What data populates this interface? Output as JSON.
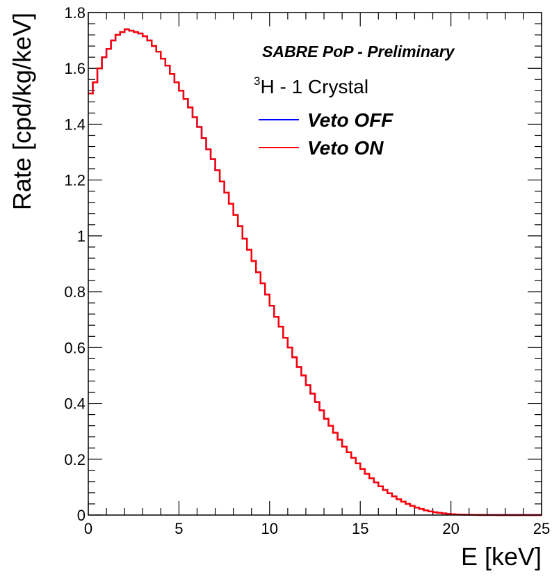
{
  "chart_data": {
    "type": "line",
    "step": true,
    "ylabel": "Rate [cpd/kg/keV]",
    "xlabel": "E [keV]",
    "xlim": [
      0,
      25
    ],
    "ylim": [
      0,
      1.8
    ],
    "x_ticks": [
      "0",
      "5",
      "10",
      "15",
      "20",
      "25"
    ],
    "y_ticks": [
      "0",
      "0.2",
      "0.4",
      "0.6",
      "0.8",
      "1",
      "1.2",
      "1.4",
      "1.6",
      "1.8"
    ],
    "annotation": "SABRE PoP - Preliminary",
    "subtitle": {
      "sup": "3",
      "text": "H - 1 Crystal"
    },
    "bin_width": 0.25,
    "x": [
      0.125,
      0.375,
      0.625,
      0.875,
      1.125,
      1.375,
      1.625,
      1.875,
      2.125,
      2.375,
      2.625,
      2.875,
      3.125,
      3.375,
      3.625,
      3.875,
      4.125,
      4.375,
      4.625,
      4.875,
      5.125,
      5.375,
      5.625,
      5.875,
      6.125,
      6.375,
      6.625,
      6.875,
      7.125,
      7.375,
      7.625,
      7.875,
      8.125,
      8.375,
      8.625,
      8.875,
      9.125,
      9.375,
      9.625,
      9.875,
      10.125,
      10.375,
      10.625,
      10.875,
      11.125,
      11.375,
      11.625,
      11.875,
      12.125,
      12.375,
      12.625,
      12.875,
      13.125,
      13.375,
      13.625,
      13.875,
      14.125,
      14.375,
      14.625,
      14.875,
      15.125,
      15.375,
      15.625,
      15.875,
      16.125,
      16.375,
      16.625,
      16.875,
      17.125,
      17.375,
      17.625,
      17.875,
      18.125,
      18.375,
      18.625,
      18.875,
      19.125,
      19.375,
      19.625,
      19.875,
      20.125,
      20.375,
      20.625,
      20.875,
      21.125,
      21.375,
      21.625,
      21.875,
      22.125,
      22.375,
      22.625,
      22.875,
      23.125,
      23.375,
      23.625,
      23.875,
      24.125,
      24.375,
      24.625,
      24.875
    ],
    "series": [
      {
        "name": "Veto OFF",
        "color": "#0000ff",
        "values": [
          1.51,
          1.55,
          1.6,
          1.64,
          1.67,
          1.7,
          1.72,
          1.73,
          1.74,
          1.735,
          1.73,
          1.725,
          1.715,
          1.7,
          1.68,
          1.66,
          1.635,
          1.61,
          1.58,
          1.55,
          1.52,
          1.49,
          1.46,
          1.425,
          1.39,
          1.35,
          1.31,
          1.275,
          1.235,
          1.195,
          1.155,
          1.115,
          1.075,
          1.035,
          0.99,
          0.95,
          0.91,
          0.87,
          0.83,
          0.79,
          0.75,
          0.71,
          0.675,
          0.635,
          0.6,
          0.565,
          0.53,
          0.5,
          0.465,
          0.435,
          0.405,
          0.375,
          0.345,
          0.32,
          0.295,
          0.27,
          0.245,
          0.225,
          0.205,
          0.185,
          0.165,
          0.148,
          0.132,
          0.117,
          0.103,
          0.09,
          0.078,
          0.067,
          0.057,
          0.048,
          0.04,
          0.033,
          0.027,
          0.022,
          0.017,
          0.013,
          0.01,
          0.008,
          0.006,
          0.004,
          0.003,
          0.002,
          0.0015,
          0.001,
          0.0008,
          0.0005,
          0.0003,
          0.0002,
          0.0001,
          0.0001,
          0.0,
          0.0,
          0.0,
          0.0,
          0.0,
          0.0,
          0.0,
          0.0,
          0.0,
          0.0
        ]
      },
      {
        "name": "Veto ON",
        "color": "#ff0000",
        "values": [
          1.51,
          1.55,
          1.6,
          1.64,
          1.67,
          1.7,
          1.72,
          1.73,
          1.74,
          1.735,
          1.73,
          1.725,
          1.715,
          1.7,
          1.68,
          1.66,
          1.635,
          1.61,
          1.58,
          1.55,
          1.52,
          1.49,
          1.46,
          1.425,
          1.39,
          1.35,
          1.31,
          1.275,
          1.235,
          1.195,
          1.155,
          1.115,
          1.075,
          1.035,
          0.99,
          0.95,
          0.91,
          0.87,
          0.83,
          0.79,
          0.75,
          0.71,
          0.675,
          0.635,
          0.6,
          0.565,
          0.53,
          0.5,
          0.465,
          0.435,
          0.405,
          0.375,
          0.345,
          0.32,
          0.295,
          0.27,
          0.245,
          0.225,
          0.205,
          0.185,
          0.165,
          0.148,
          0.132,
          0.117,
          0.103,
          0.09,
          0.078,
          0.067,
          0.057,
          0.048,
          0.04,
          0.033,
          0.027,
          0.022,
          0.017,
          0.013,
          0.01,
          0.008,
          0.006,
          0.004,
          0.003,
          0.002,
          0.0015,
          0.001,
          0.0008,
          0.0005,
          0.0003,
          0.0002,
          0.0001,
          0.0001,
          0.0,
          0.0,
          0.0,
          0.0,
          0.0,
          0.0,
          0.0,
          0.0,
          0.0,
          0.0
        ]
      }
    ]
  }
}
